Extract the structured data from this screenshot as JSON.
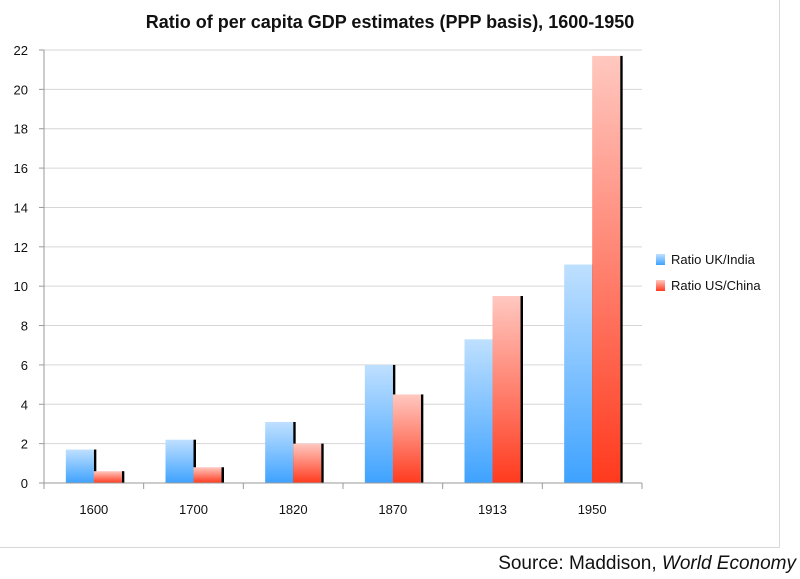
{
  "source": {
    "prefix": "Source: Maddison, ",
    "work": "World Economy"
  },
  "colors": {
    "uk_india_top": "#bfe0ff",
    "uk_india_bottom": "#3ea2ff",
    "us_china_top": "#ffc8c0",
    "us_china_bottom": "#ff3a1e",
    "grid": "#d6d6d6",
    "axis": "#9a9a9a"
  },
  "chart_data": {
    "type": "bar",
    "title": "Ratio of per capita GDP estimates (PPP basis), 1600-1950",
    "xlabel": "",
    "ylabel": "",
    "ylim": [
      0,
      22
    ],
    "yticks": [
      0,
      2,
      4,
      6,
      8,
      10,
      12,
      14,
      16,
      18,
      20,
      22
    ],
    "grid": true,
    "legend_position": "right",
    "categories": [
      "1600",
      "1700",
      "1820",
      "1870",
      "1913",
      "1950"
    ],
    "series": [
      {
        "name": "Ratio UK/India",
        "values": [
          1.7,
          2.2,
          3.1,
          6.0,
          7.3,
          11.1
        ]
      },
      {
        "name": "Ratio US/China",
        "values": [
          0.6,
          0.8,
          2.0,
          4.5,
          9.5,
          21.7
        ]
      }
    ]
  }
}
